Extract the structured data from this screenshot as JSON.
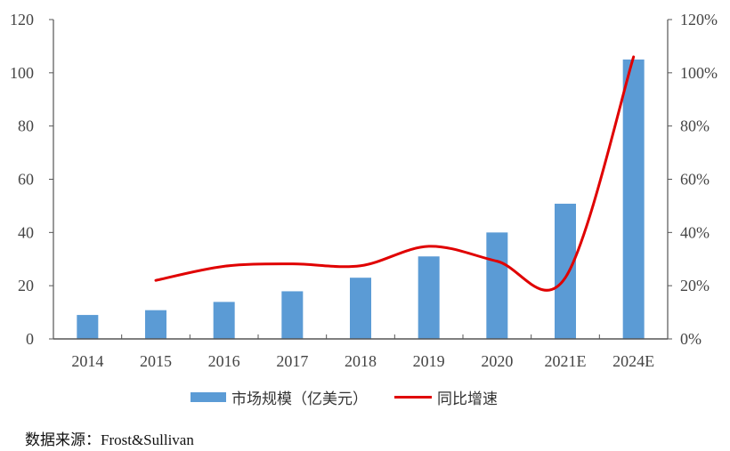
{
  "chart_data": {
    "type": "bar+line",
    "categories": [
      "2014",
      "2015",
      "2016",
      "2017",
      "2018",
      "2019",
      "2020",
      "2021E",
      "2024E"
    ],
    "series": [
      {
        "name": "市场规模（亿美元）",
        "type": "bar",
        "axis": "left",
        "color": "#5b9bd5",
        "values": [
          9,
          10.8,
          13.9,
          17.9,
          23,
          31,
          40,
          50.8,
          105
        ]
      },
      {
        "name": "同比增速",
        "type": "line",
        "axis": "right",
        "color": "#e00000",
        "values": [
          null,
          22,
          27.3,
          28.2,
          27.5,
          34.8,
          29.2,
          23,
          106
        ]
      }
    ],
    "left_axis": {
      "ylim": [
        0,
        120
      ],
      "ticks": [
        "0",
        "20",
        "40",
        "60",
        "80",
        "100",
        "120"
      ]
    },
    "right_axis": {
      "ylim": [
        0,
        120
      ],
      "ticks": [
        "0%",
        "20%",
        "40%",
        "60%",
        "80%",
        "100%",
        "120%"
      ]
    },
    "legend_position": "bottom",
    "grid": false
  },
  "legend": {
    "bar_label": "市场规模（亿美元）",
    "line_label": "同比增速"
  },
  "source": "数据来源：Frost&Sullivan"
}
